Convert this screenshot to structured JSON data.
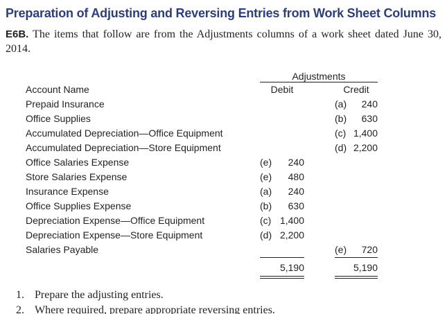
{
  "title": "Preparation of Adjusting and Reversing Entries from Work Sheet Columns",
  "exercise": {
    "label": "E6B.",
    "text": "The items that follow are from the Adjustments columns of a work sheet dated June 30, 2014."
  },
  "table": {
    "group_header": "Adjustments",
    "columns": {
      "account": "Account Name",
      "debit": "Debit",
      "credit": "Credit"
    },
    "rows": [
      {
        "account": "Prepaid Insurance",
        "debit_ref": "",
        "debit": "",
        "credit_ref": "(a)",
        "credit": "240"
      },
      {
        "account": "Office Supplies",
        "debit_ref": "",
        "debit": "",
        "credit_ref": "(b)",
        "credit": "630"
      },
      {
        "account": "Accumulated Depreciation—Office Equipment",
        "debit_ref": "",
        "debit": "",
        "credit_ref": "(c)",
        "credit": "1,400"
      },
      {
        "account": "Accumulated Depreciation—Store Equipment",
        "debit_ref": "",
        "debit": "",
        "credit_ref": "(d)",
        "credit": "2,200"
      },
      {
        "account": "Office Salaries Expense",
        "debit_ref": "(e)",
        "debit": "240",
        "credit_ref": "",
        "credit": ""
      },
      {
        "account": "Store Salaries Expense",
        "debit_ref": "(e)",
        "debit": "480",
        "credit_ref": "",
        "credit": ""
      },
      {
        "account": "Insurance Expense",
        "debit_ref": "(a)",
        "debit": "240",
        "credit_ref": "",
        "credit": ""
      },
      {
        "account": "Office Supplies Expense",
        "debit_ref": "(b)",
        "debit": "630",
        "credit_ref": "",
        "credit": ""
      },
      {
        "account": "Depreciation Expense—Office Equipment",
        "debit_ref": "(c)",
        "debit": "1,400",
        "credit_ref": "",
        "credit": ""
      },
      {
        "account": "Depreciation Expense—Store Equipment",
        "debit_ref": "(d)",
        "debit": "2,200",
        "credit_ref": "",
        "credit": ""
      },
      {
        "account": "Salaries Payable",
        "debit_ref": "",
        "debit": "",
        "credit_ref": "(e)",
        "credit": "720"
      }
    ],
    "totals": {
      "debit": "5,190",
      "credit": "5,190"
    }
  },
  "instructions": [
    {
      "number": "1.",
      "text": "Prepare the adjusting entries."
    },
    {
      "number": "2.",
      "text": "Where required, prepare appropriate reversing entries."
    }
  ],
  "colors": {
    "title_blue": "#2b3e7d",
    "text_black": "#231f20"
  }
}
